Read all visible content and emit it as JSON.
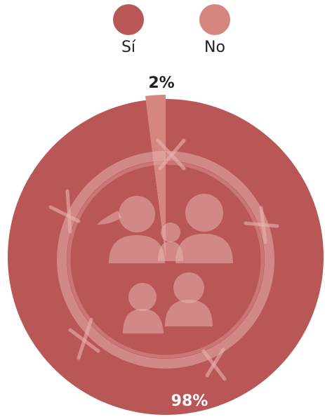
{
  "chart_data": {
    "type": "pie",
    "categories": [
      "Sí",
      "No"
    ],
    "values": [
      98,
      2
    ],
    "value_labels": [
      "98%",
      "2%"
    ],
    "colors": [
      "#b95757",
      "#d4867f"
    ],
    "legend": "top"
  }
}
